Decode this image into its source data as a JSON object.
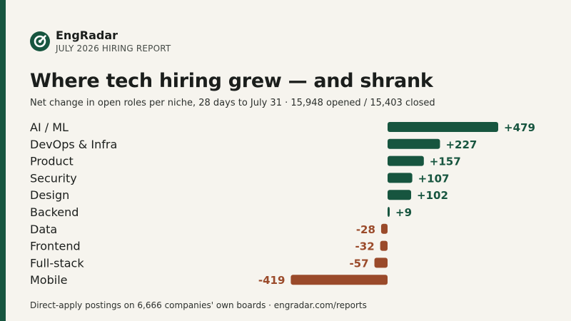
{
  "brand": {
    "name": "EngRadar",
    "subtitle": "JULY 2026 HIRING REPORT"
  },
  "title": "Where tech hiring grew — and shrank",
  "subtitle": "Net change in open roles per niche, 28 days to July 31 · 15,948 opened / 15,403 closed",
  "footer": "Direct-apply postings on 6,666 companies' own boards · engradar.com/reports",
  "colors": {
    "accent": "#17553f",
    "positive": "#17553f",
    "negative": "#9a4a2a",
    "background": "#f6f4ee"
  },
  "chart_data": {
    "type": "bar",
    "orientation": "horizontal",
    "categories": [
      "AI / ML",
      "DevOps & Infra",
      "Product",
      "Security",
      "Design",
      "Backend",
      "Data",
      "Frontend",
      "Full-stack",
      "Mobile"
    ],
    "values": [
      479,
      227,
      157,
      107,
      102,
      9,
      -28,
      -32,
      -57,
      -419
    ],
    "value_labels": [
      "+479",
      "+227",
      "+157",
      "+107",
      "+102",
      "+9",
      "-28",
      "-32",
      "-57",
      "-419"
    ],
    "title": "",
    "xlabel": "",
    "ylabel": "",
    "grid": false,
    "legend": "none"
  }
}
